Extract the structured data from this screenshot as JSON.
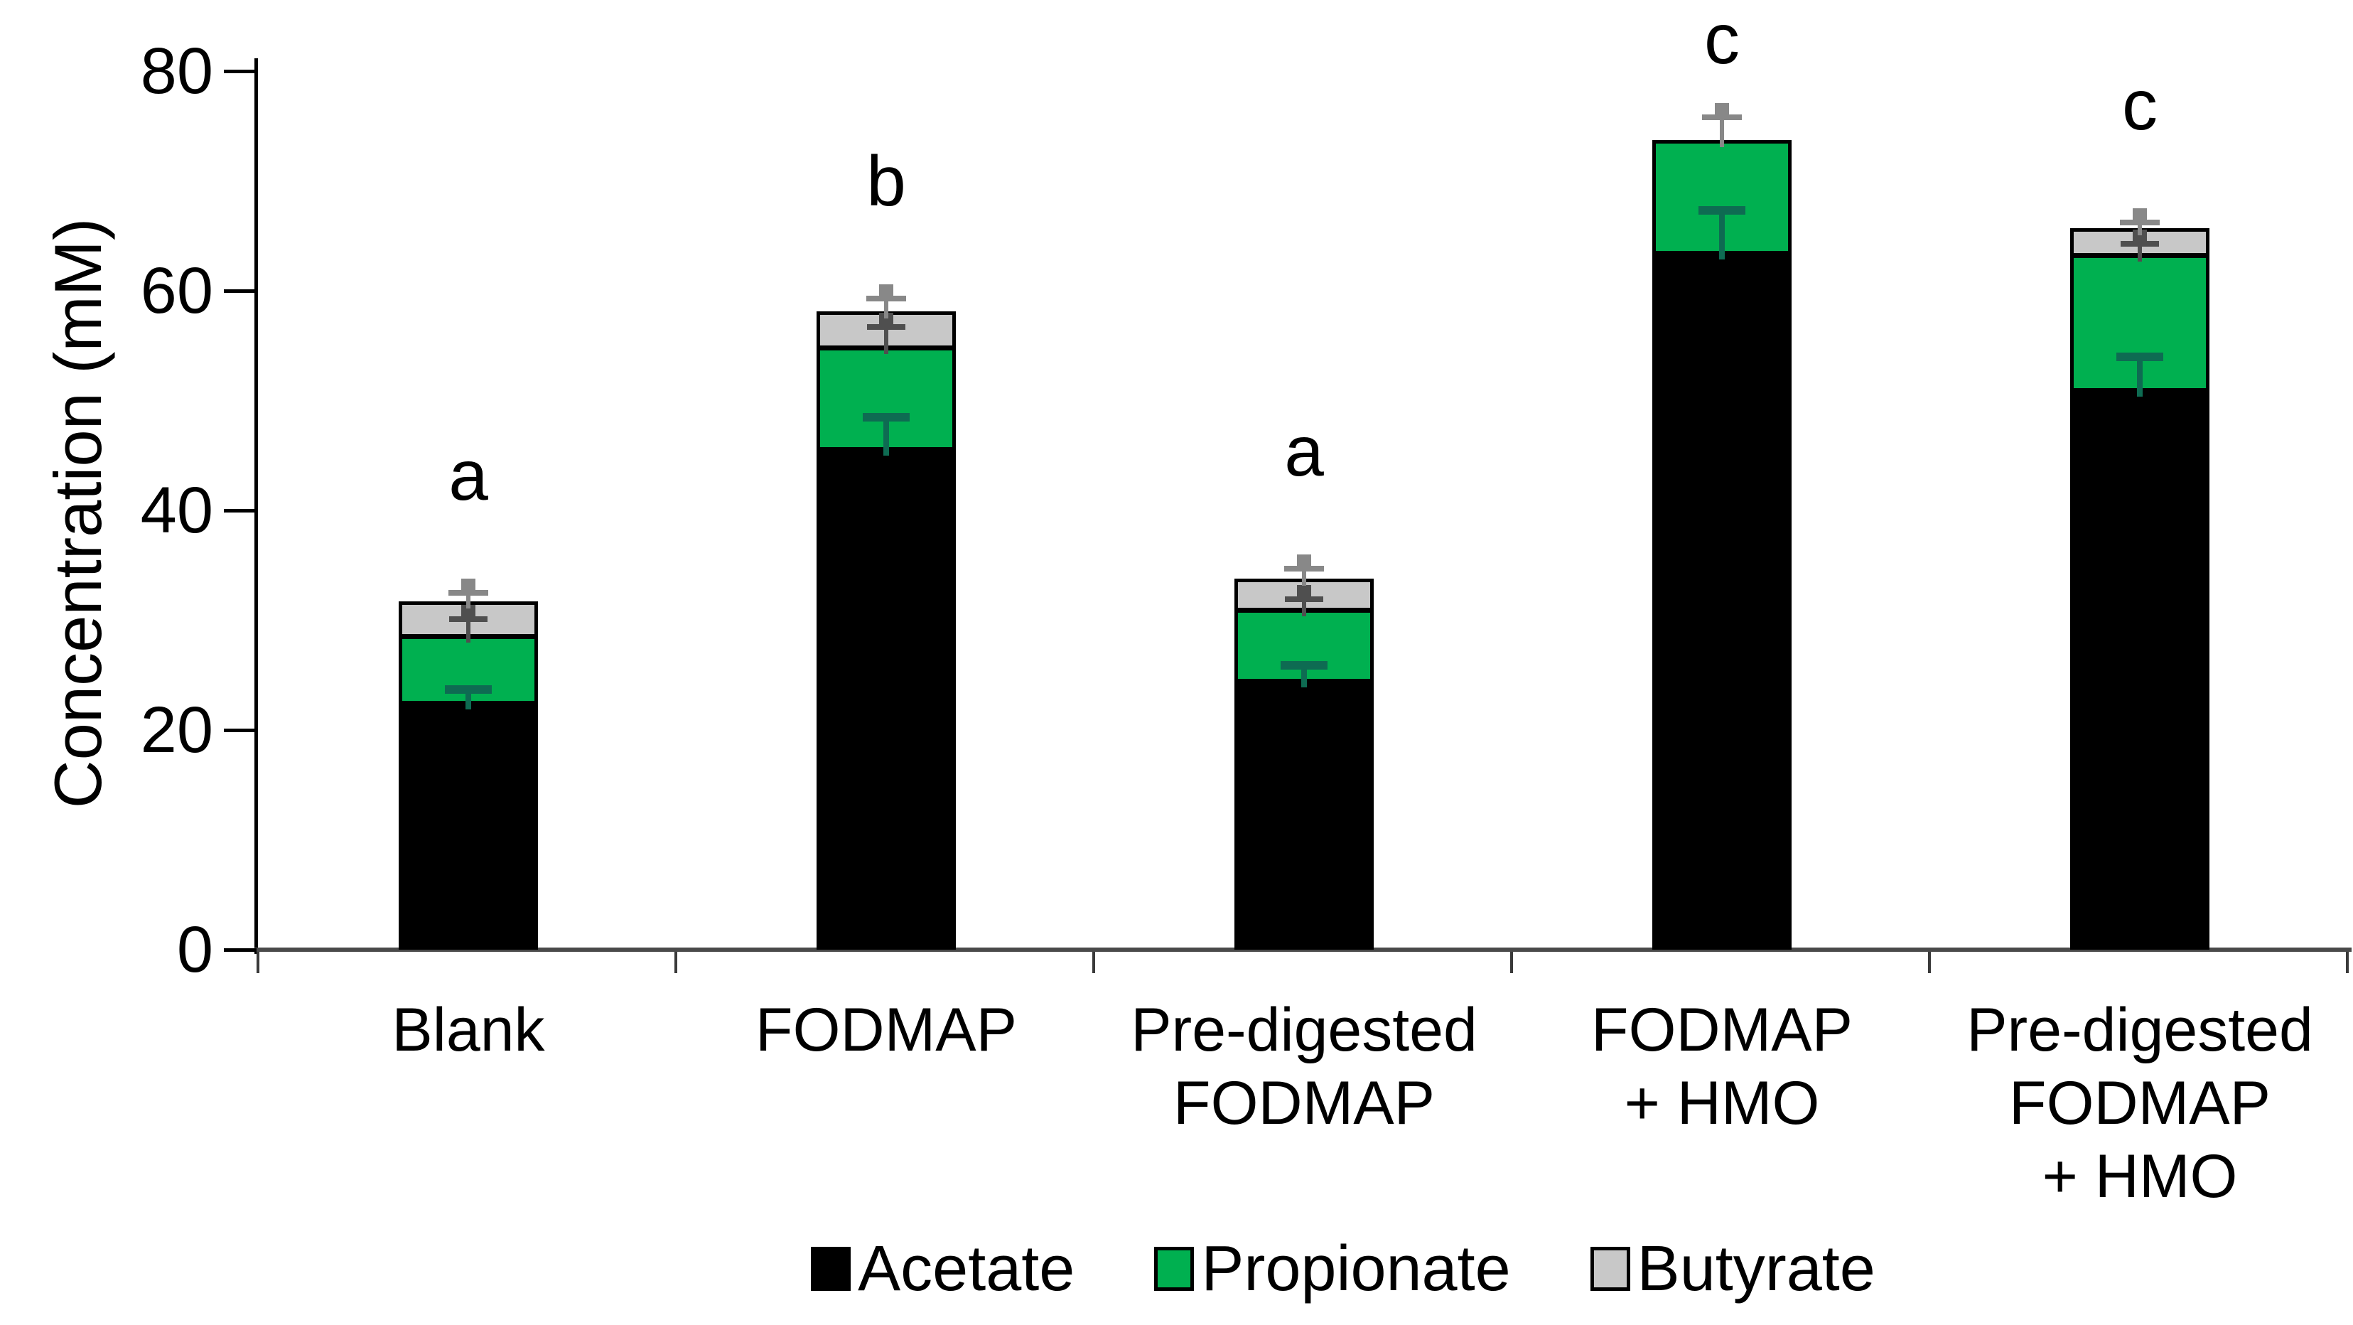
{
  "chart_data": {
    "type": "bar",
    "stacked": true,
    "title": "",
    "xlabel": "",
    "ylabel": "Concentration (mM)",
    "ylim": [
      0,
      80
    ],
    "yticks": [
      0,
      20,
      40,
      60,
      80
    ],
    "grid": false,
    "legend_position": "bottom",
    "categories": [
      {
        "lines": [
          "Blank"
        ]
      },
      {
        "lines": [
          "FODMAP"
        ]
      },
      {
        "lines": [
          "Pre-digested",
          "FODMAP"
        ]
      },
      {
        "lines": [
          "FODMAP",
          "+ HMO"
        ]
      },
      {
        "lines": [
          "Pre-digested",
          "FODMAP",
          "+ HMO"
        ]
      }
    ],
    "series": [
      {
        "name": "Acetate",
        "color": "#000000",
        "values": [
          22.5,
          45.6,
          24.5,
          63.5,
          51.0
        ]
      },
      {
        "name": "Propionate",
        "color": "#00B050",
        "values": [
          6.1,
          9.3,
          6.5,
          10.2,
          12.3
        ]
      },
      {
        "name": "Butyrate",
        "color": "#C8C8C8",
        "values": [
          3.1,
          3.2,
          2.8,
          0,
          2.4
        ]
      }
    ],
    "stack_totals": [
      31.7,
      58.1,
      33.8,
      73.7,
      65.7
    ],
    "sig_letters": [
      "a",
      "b",
      "a",
      "c",
      "c"
    ],
    "error_bars_mM": {
      "total_top_up": [
        0.8,
        1.2,
        0.9,
        2.1,
        0.5
      ],
      "propionate_top_up": [
        1.5,
        1.8,
        0.9,
        0,
        1.0
      ],
      "acetate_top_up": [
        1.2,
        2.9,
        1.4,
        3.8,
        3.0
      ]
    }
  },
  "colors": {
    "acetate": "#000000",
    "propionate_green": "#00B050",
    "butyrate_gray": "#C8C8C8",
    "whisker_total": "#888888",
    "whisker_mid": "#4F4F4F",
    "whisker_acetate_teal": "#0E6B52",
    "x_axis": "#4a4a4a",
    "y_axis": "#000000"
  }
}
